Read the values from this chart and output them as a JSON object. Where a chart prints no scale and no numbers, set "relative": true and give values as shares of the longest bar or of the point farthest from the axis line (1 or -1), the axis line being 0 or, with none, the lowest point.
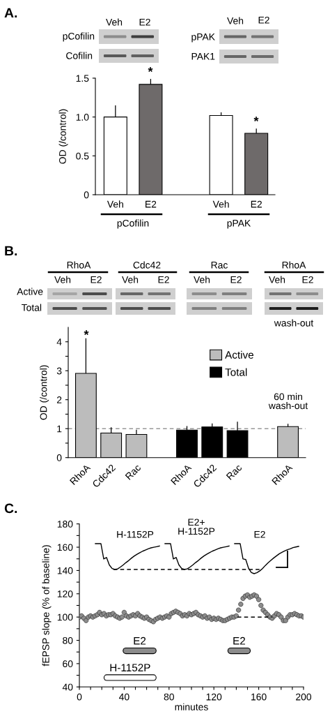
{
  "chart_data": [
    {
      "type": "bar",
      "title": "A.",
      "ylabel": "OD (/control)",
      "categories": [
        "Veh",
        "E2",
        null,
        "Veh",
        "E2"
      ],
      "series": [
        {
          "color": "#ffffff",
          "values": [
            1.0,
            null,
            null,
            1.02,
            null
          ],
          "errors": [
            [
              1.0,
              1.15
            ],
            null,
            null,
            [
              1.02,
              1.06
            ],
            null
          ]
        },
        {
          "color": "#6e6a6a",
          "values": [
            null,
            1.42,
            null,
            null,
            0.79
          ],
          "errors": [
            null,
            [
              1.42,
              1.49
            ],
            null,
            null,
            [
              0.79,
              0.85
            ]
          ]
        }
      ],
      "ylim": [
        0,
        1.5
      ],
      "yticks": [
        0,
        0.5,
        {
          "value": 1,
          "label": "1.0"
        },
        {
          "value": 1.5,
          "label": "1.5"
        }
      ],
      "annotations": [
        "Veh",
        "E2",
        "pCofilin",
        "Cofilin",
        "Veh",
        "E2",
        "pPAK",
        "PAK1",
        "*",
        "*",
        "pCofilin",
        "pPAK"
      ]
    },
    {
      "type": "bar",
      "title": "B.",
      "ylabel": "OD (/control)",
      "categories": [
        "RhoA",
        "Cdc42",
        "Rac",
        null,
        "RhoA",
        "Cdc42",
        "Rac",
        null,
        "RhoA"
      ],
      "series": [
        {
          "name": "Active",
          "color": "#bcbcbc",
          "values": [
            2.91,
            0.85,
            0.8,
            null,
            null,
            null,
            null,
            null,
            1.07
          ],
          "errors": [
            [
              2.91,
              4.12
            ],
            [
              0.85,
              1.05
            ],
            [
              0.8,
              0.96
            ],
            null,
            null,
            null,
            null,
            null,
            [
              1.07,
              1.17
            ]
          ]
        },
        {
          "name": "Total",
          "color": "#000000",
          "values": [
            null,
            null,
            null,
            null,
            0.95,
            1.06,
            0.93,
            null,
            null
          ],
          "errors": [
            null,
            null,
            null,
            null,
            [
              0.95,
              1.09
            ],
            [
              1.06,
              1.18
            ],
            [
              0.93,
              1.24
            ],
            null,
            null
          ]
        }
      ],
      "ylim": [
        0,
        4.5
      ],
      "yticks": [
        0,
        {
          "value": 0.5,
          "label": null
        },
        1,
        {
          "value": 1.5,
          "label": null
        },
        2,
        {
          "value": 2.5,
          "label": null
        },
        3,
        {
          "value": 3.5,
          "label": null
        },
        4
      ],
      "ref_lines": [
        {
          "axis": "y",
          "value": 1,
          "color": "#999999",
          "line_style": "dashed"
        }
      ],
      "legend": "top right",
      "annotations": [
        "RhoA",
        "Cdc42",
        "Rac",
        "RhoA",
        "Veh",
        "E2",
        "Veh",
        "E2",
        "Veh",
        "E2",
        "Veh",
        "E2",
        "Active",
        "Total",
        "wash-out",
        "*",
        "60 min\nwash-out"
      ]
    },
    {
      "type": "scatter",
      "title": "C.",
      "xlabel": "minutes",
      "ylabel": "fEPSP slope (% of baseline)",
      "series": [
        {
          "type": "scatter",
          "color": "#8c8c8c",
          "marker": "circle",
          "x": [
            0,
            2,
            4,
            6,
            8,
            10,
            12,
            14,
            16,
            18,
            20,
            22,
            24,
            26,
            28,
            30,
            32,
            34,
            36,
            38,
            40,
            42,
            44,
            46,
            48,
            50,
            52,
            54,
            56,
            58,
            60,
            62,
            64,
            66,
            68,
            70,
            72,
            74,
            76,
            78,
            80,
            82,
            84,
            86,
            88,
            90,
            92,
            94,
            96,
            98,
            100,
            102,
            104,
            106,
            108,
            110,
            112,
            114,
            116,
            118,
            120,
            122,
            124,
            126,
            128,
            130,
            132,
            134,
            136,
            138,
            140,
            142,
            144,
            146,
            148,
            150,
            152,
            154,
            156,
            158,
            160,
            162,
            164,
            166,
            168,
            170,
            172,
            174,
            176,
            178,
            180,
            182,
            184,
            186,
            188,
            190,
            192,
            194,
            196,
            198,
            200
          ],
          "values": [
            100,
            101,
            99,
            97,
            100,
            101,
            100,
            101,
            102,
            104,
            102,
            103,
            101,
            102,
            102,
            103,
            101,
            100,
            99,
            100,
            104,
            101,
            100,
            101,
            102,
            101,
            103,
            101,
            100,
            99,
            100,
            98,
            97,
            96,
            98,
            99,
            100,
            99,
            100,
            101,
            100,
            103,
            104,
            105,
            104,
            103,
            101,
            102,
            101,
            103,
            102,
            103,
            104,
            102,
            101,
            100,
            101,
            99,
            100,
            98,
            99,
            98,
            99,
            98,
            97,
            97,
            98,
            99,
            100,
            100,
            101,
            106,
            111,
            116,
            118,
            119,
            117,
            118,
            119,
            118,
            115,
            110,
            106,
            104,
            102,
            100,
            99,
            101,
            103,
            102,
            100,
            97,
            97,
            100,
            102,
            102,
            103,
            102,
            101,
            101,
            100
          ]
        },
        {
          "type": "line",
          "color": "#000000",
          "line_style": "dashed",
          "x": [
            141,
            172
          ],
          "values": [
            100,
            100
          ]
        },
        {
          "type": "line",
          "name": "E2",
          "color": "#8c8c8c",
          "x": [
            41.5,
            66
          ],
          "values": [
            71,
            71
          ]
        },
        {
          "type": "line",
          "name": "H-1152P",
          "color": "#ffffff",
          "x": [
            24.5,
            66
          ],
          "values": [
            48,
            48
          ]
        },
        {
          "type": "line",
          "name": "E2",
          "color": "#8c8c8c",
          "x": [
            135,
            150
          ],
          "values": [
            71,
            71
          ]
        }
      ],
      "xlim": [
        0,
        200
      ],
      "xticks": [
        0,
        {
          "value": 10,
          "label": null
        },
        {
          "value": 20,
          "label": null
        },
        {
          "value": 30,
          "label": null
        },
        40,
        {
          "value": 50,
          "label": null
        },
        {
          "value": 60,
          "label": null
        },
        {
          "value": 70,
          "label": null
        },
        80,
        {
          "value": 90,
          "label": null
        },
        {
          "value": 100,
          "label": null
        },
        {
          "value": 110,
          "label": null
        },
        120,
        {
          "value": 130,
          "label": null
        },
        {
          "value": 140,
          "label": null
        },
        {
          "value": 150,
          "label": null
        },
        160,
        {
          "value": 170,
          "label": null
        },
        {
          "value": 180,
          "label": null
        },
        {
          "value": 190,
          "label": null
        },
        200
      ],
      "ylim": [
        40,
        180
      ],
      "yticks": [
        40,
        {
          "value": 50,
          "label": null
        },
        60,
        {
          "value": 70,
          "label": null
        },
        80,
        {
          "value": 90,
          "label": null
        },
        100,
        {
          "value": 110,
          "label": null
        },
        120,
        {
          "value": 130,
          "label": null
        },
        140,
        {
          "value": 150,
          "label": null
        },
        160,
        {
          "value": 170,
          "label": null
        },
        180
      ]
    },
    {
      "type": "line",
      "relative": true,
      "categories": [
        null,
        null,
        null,
        null,
        null,
        null,
        null,
        null,
        null,
        null,
        null,
        null,
        null,
        null,
        null,
        null,
        null,
        null,
        null,
        null,
        null,
        null,
        null,
        null,
        null,
        null,
        null,
        null,
        null,
        null,
        null,
        null,
        null,
        null,
        null,
        null,
        null,
        null,
        null,
        null,
        null,
        null,
        null,
        null,
        null,
        null,
        null,
        null,
        null,
        null,
        null,
        null,
        null,
        null,
        null,
        null,
        null,
        null,
        null,
        null,
        null,
        null,
        null,
        null,
        null,
        null,
        null,
        null,
        null,
        null,
        null,
        null,
        null,
        null
      ],
      "series": [
        {
          "color": "#000000",
          "values": [
            1,
            1,
            1,
            0.49,
            0.54,
            0.29,
            0.17,
            0.14,
            0.16,
            0.22,
            0.29,
            0.37,
            0.44,
            0.52,
            0.59,
            0.65,
            0.7,
            0.75,
            0.79,
            0.83,
            0.86,
            0.88,
            0.9,
            0.92,
            null,
            null,
            null,
            null,
            null,
            null,
            null,
            null,
            null,
            null,
            null,
            null,
            null,
            null,
            null,
            null,
            null,
            null,
            null,
            null,
            null,
            null,
            null,
            null,
            null,
            null,
            null,
            null,
            null,
            null,
            null,
            null,
            null,
            null,
            null,
            null,
            null,
            null,
            null,
            null,
            null,
            null,
            null,
            null,
            null,
            null,
            null,
            null,
            null,
            null
          ]
        },
        {
          "color": "#000000",
          "values": [
            null,
            null,
            null,
            null,
            null,
            null,
            null,
            null,
            null,
            null,
            null,
            null,
            null,
            null,
            null,
            null,
            null,
            null,
            null,
            null,
            null,
            null,
            null,
            null,
            null,
            1,
            1,
            1,
            0.49,
            0.54,
            0.29,
            0.17,
            0.14,
            0.16,
            0.22,
            0.29,
            0.37,
            0.44,
            0.52,
            0.59,
            0.65,
            0.7,
            0.75,
            0.79,
            0.83,
            0.86,
            0.88,
            0.9,
            0.92,
            null,
            null,
            null,
            null,
            null,
            null,
            null,
            null,
            null,
            null,
            null,
            null,
            null,
            null,
            null,
            null,
            null,
            null,
            null,
            null,
            null,
            null,
            null,
            null,
            null
          ]
        },
        {
          "color": "#000000",
          "values": [
            null,
            null,
            null,
            null,
            null,
            null,
            null,
            null,
            null,
            null,
            null,
            null,
            null,
            null,
            null,
            null,
            null,
            null,
            null,
            null,
            null,
            null,
            null,
            null,
            null,
            null,
            null,
            null,
            null,
            null,
            null,
            null,
            null,
            null,
            null,
            null,
            null,
            null,
            null,
            null,
            null,
            null,
            null,
            null,
            null,
            null,
            null,
            null,
            null,
            null,
            1,
            1,
            1,
            0.49,
            0.47,
            0.18,
            0.04,
            0,
            0.03,
            0.09,
            0.17,
            0.27,
            0.36,
            0.44,
            0.52,
            0.59,
            0.66,
            0.71,
            0.76,
            0.8,
            0.83,
            0.87,
            0.89,
            0.91
          ]
        }
      ],
      "ref_lines": [
        {
          "axis": "y",
          "value": 0.14,
          "color": "#000000",
          "line_style": "dashed"
        }
      ],
      "annotations": [
        "H-1152P",
        "E2+\nH-1152P",
        "E2"
      ]
    }
  ]
}
